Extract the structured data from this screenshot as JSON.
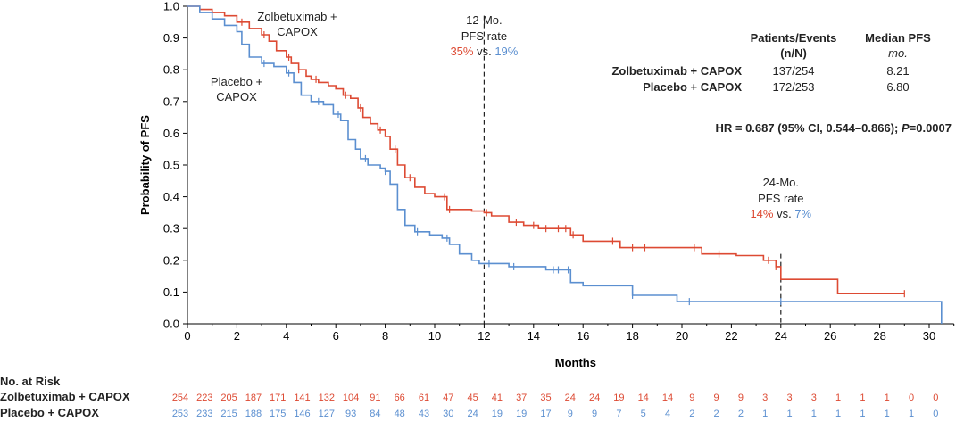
{
  "colors": {
    "zolbe": "#dd4a33",
    "placebo": "#5b8fd0",
    "axis": "#000000",
    "dash": "#222222"
  },
  "chart_data": {
    "type": "line",
    "subtype": "kaplan-meier",
    "xlabel": "Months",
    "ylabel": "Probability of PFS",
    "xlim": [
      0,
      31
    ],
    "ylim": [
      0,
      1.0
    ],
    "x_ticks": [
      "0",
      "2",
      "4",
      "6",
      "8",
      "10",
      "12",
      "14",
      "16",
      "18",
      "20",
      "22",
      "24",
      "26",
      "28",
      "30"
    ],
    "y_ticks": [
      "0.0",
      "0.1",
      "0.2",
      "0.3",
      "0.4",
      "0.5",
      "0.6",
      "0.7",
      "0.8",
      "0.9",
      "1.0"
    ],
    "series": [
      {
        "name": "Zolbetuximab + CAPOX",
        "color_key": "zolbe",
        "steps": [
          [
            0,
            1.0
          ],
          [
            0.5,
            0.99
          ],
          [
            1.0,
            0.98
          ],
          [
            1.5,
            0.97
          ],
          [
            2.0,
            0.95
          ],
          [
            2.5,
            0.93
          ],
          [
            3.0,
            0.91
          ],
          [
            3.3,
            0.89
          ],
          [
            3.6,
            0.86
          ],
          [
            4.0,
            0.84
          ],
          [
            4.2,
            0.82
          ],
          [
            4.5,
            0.8
          ],
          [
            4.8,
            0.78
          ],
          [
            5.0,
            0.77
          ],
          [
            5.3,
            0.76
          ],
          [
            5.7,
            0.75
          ],
          [
            6.0,
            0.74
          ],
          [
            6.3,
            0.72
          ],
          [
            6.6,
            0.71
          ],
          [
            6.9,
            0.68
          ],
          [
            7.1,
            0.65
          ],
          [
            7.4,
            0.63
          ],
          [
            7.7,
            0.61
          ],
          [
            8.0,
            0.59
          ],
          [
            8.2,
            0.55
          ],
          [
            8.5,
            0.5
          ],
          [
            8.8,
            0.46
          ],
          [
            9.2,
            0.43
          ],
          [
            9.6,
            0.41
          ],
          [
            10.0,
            0.4
          ],
          [
            10.5,
            0.36
          ],
          [
            11.5,
            0.355
          ],
          [
            12.0,
            0.35
          ],
          [
            12.3,
            0.34
          ],
          [
            13.0,
            0.32
          ],
          [
            13.6,
            0.31
          ],
          [
            14.2,
            0.3
          ],
          [
            15.0,
            0.3
          ],
          [
            15.5,
            0.28
          ],
          [
            16.0,
            0.26
          ],
          [
            17.5,
            0.24
          ],
          [
            18.3,
            0.24
          ],
          [
            20.8,
            0.22
          ],
          [
            22.2,
            0.215
          ],
          [
            23.3,
            0.2
          ],
          [
            23.8,
            0.18
          ],
          [
            24.0,
            0.14
          ],
          [
            26.3,
            0.095
          ],
          [
            29.0,
            0.095
          ]
        ],
        "censor_x": [
          2.2,
          3.1,
          4.1,
          4.5,
          5.2,
          6.4,
          7.0,
          7.8,
          8.4,
          9.0,
          10.4,
          10.6,
          12.1,
          13.3,
          14.0,
          14.5,
          15.0,
          15.3,
          15.6,
          17.2,
          18.0,
          18.5,
          20.5,
          21.5,
          23.5,
          23.8,
          29.0
        ]
      },
      {
        "name": "Placebo + CAPOX",
        "color_key": "placebo",
        "steps": [
          [
            0,
            1.0
          ],
          [
            0.5,
            0.98
          ],
          [
            1.0,
            0.96
          ],
          [
            1.5,
            0.94
          ],
          [
            2.0,
            0.92
          ],
          [
            2.2,
            0.88
          ],
          [
            2.5,
            0.84
          ],
          [
            3.0,
            0.82
          ],
          [
            3.5,
            0.81
          ],
          [
            4.0,
            0.79
          ],
          [
            4.3,
            0.76
          ],
          [
            4.6,
            0.72
          ],
          [
            5.0,
            0.7
          ],
          [
            5.5,
            0.69
          ],
          [
            5.9,
            0.66
          ],
          [
            6.2,
            0.64
          ],
          [
            6.5,
            0.58
          ],
          [
            6.8,
            0.55
          ],
          [
            7.0,
            0.52
          ],
          [
            7.3,
            0.5
          ],
          [
            7.8,
            0.49
          ],
          [
            8.0,
            0.48
          ],
          [
            8.2,
            0.44
          ],
          [
            8.5,
            0.36
          ],
          [
            8.8,
            0.31
          ],
          [
            9.2,
            0.29
          ],
          [
            9.8,
            0.28
          ],
          [
            10.3,
            0.27
          ],
          [
            10.6,
            0.25
          ],
          [
            11.0,
            0.22
          ],
          [
            11.5,
            0.2
          ],
          [
            11.8,
            0.19
          ],
          [
            13.0,
            0.18
          ],
          [
            14.5,
            0.17
          ],
          [
            15.5,
            0.13
          ],
          [
            16.0,
            0.12
          ],
          [
            18.0,
            0.09
          ],
          [
            19.8,
            0.07
          ],
          [
            30.5,
            0.07
          ],
          [
            30.5,
            0.0
          ]
        ],
        "censor_x": [
          3.1,
          4.1,
          5.3,
          6.1,
          7.2,
          8.0,
          9.3,
          10.5,
          12.2,
          13.2,
          14.8,
          15.0,
          15.4,
          18.0,
          20.3,
          24.0
        ]
      }
    ],
    "annotations": {
      "zolbe_label": [
        "Zolbetuximab +",
        "CAPOX"
      ],
      "placebo_label": [
        "Placebo +",
        "CAPOX"
      ],
      "mo12": {
        "x": 12,
        "title1": "12-Mo.",
        "title2": "PFS rate",
        "zolbe": "35%",
        "vs": "vs.",
        "placebo": "19%"
      },
      "mo24": {
        "x": 24,
        "title1": "24-Mo.",
        "title2": "PFS rate",
        "zolbe": "14%",
        "vs": "vs.",
        "placebo": "7%"
      }
    },
    "summary_table": {
      "col1_header": [
        "Patients/Events",
        "(n/N)"
      ],
      "col2_header": [
        "Median PFS",
        "mo."
      ],
      "rows": [
        {
          "name": "Zolbetuximab + CAPOX",
          "events": "137/254",
          "median": "8.21",
          "color_key": "zolbe"
        },
        {
          "name": "Placebo + CAPOX",
          "events": "172/253",
          "median": "6.80",
          "color_key": "placebo"
        }
      ]
    },
    "hr_text": {
      "pre": "HR = 0.687 (95% CI, 0.544–0.866); ",
      "p": "P",
      "post": "=0.0007"
    },
    "at_risk": {
      "title": "No. at Risk",
      "rows": [
        {
          "name": "Zolbetuximab + CAPOX",
          "color_key": "zolbe",
          "values": [
            "254",
            "223",
            "205",
            "187",
            "171",
            "141",
            "132",
            "104",
            "91",
            "66",
            "61",
            "47",
            "45",
            "41",
            "37",
            "35",
            "24",
            "24",
            "19",
            "14",
            "14",
            "9",
            "9",
            "9",
            "3",
            "3",
            "3",
            "1",
            "1",
            "1",
            "0",
            "0"
          ]
        },
        {
          "name": "Placebo + CAPOX",
          "color_key": "placebo",
          "values": [
            "253",
            "233",
            "215",
            "188",
            "175",
            "146",
            "127",
            "93",
            "84",
            "48",
            "43",
            "30",
            "24",
            "19",
            "19",
            "17",
            "9",
            "9",
            "7",
            "5",
            "4",
            "2",
            "2",
            "2",
            "1",
            "1",
            "1",
            "1",
            "1",
            "1",
            "1",
            "0"
          ]
        }
      ]
    }
  }
}
